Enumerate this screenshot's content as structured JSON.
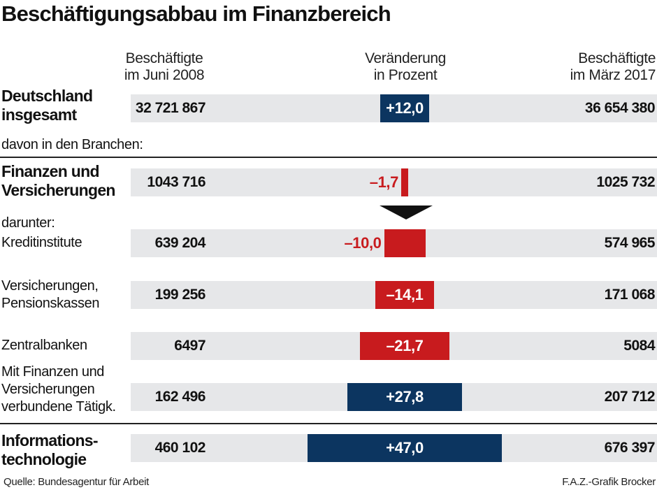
{
  "chart_data": {
    "type": "bar",
    "title": "Beschäftigungsabbau im Finanzbereich",
    "column_headers": {
      "left": [
        "Beschäftigte",
        "im Juni 2008"
      ],
      "center": [
        "Veränderung",
        "in Prozent"
      ],
      "right": [
        "Beschäftigte",
        "im März 2017"
      ]
    },
    "section_labels": {
      "davon": "davon in den Branchen:",
      "darunter": "darunter:"
    },
    "rows": [
      {
        "label": [
          "Deutschland",
          "insgesamt"
        ],
        "bold": true,
        "employed_2008": "32 721 867",
        "change": 12.0,
        "change_label": "+12,0",
        "employed_2017": "36 654 380"
      },
      {
        "label": [
          "Finanzen und",
          "Versicherungen"
        ],
        "bold": true,
        "employed_2008": "1043 716",
        "change": -1.7,
        "change_label": "–1,7",
        "employed_2017": "1025 732"
      },
      {
        "label": [
          "Kreditinstitute"
        ],
        "bold": false,
        "employed_2008": "639 204",
        "change": -10.0,
        "change_label": "–10,0",
        "employed_2017": "574 965"
      },
      {
        "label": [
          "Versicherungen,",
          "Pensionskassen"
        ],
        "bold": false,
        "employed_2008": "199 256",
        "change": -14.1,
        "change_label": "–14,1",
        "employed_2017": "171 068"
      },
      {
        "label": [
          "Zentralbanken"
        ],
        "bold": false,
        "employed_2008": "6497",
        "change": -21.7,
        "change_label": "–21,7",
        "employed_2017": "5084"
      },
      {
        "label": [
          "Mit Finanzen und",
          "Versicherungen",
          "verbundene Tätigk."
        ],
        "bold": false,
        "employed_2008": "162 496",
        "change": 27.8,
        "change_label": "+27,8",
        "employed_2017": "207 712"
      },
      {
        "label": [
          "Informations-",
          "technologie"
        ],
        "bold": true,
        "employed_2008": "460 102",
        "change": 47.0,
        "change_label": "+47,0",
        "employed_2017": "676 397"
      }
    ],
    "source": "Quelle: Bundesagentur für Arbeit",
    "credit": "F.A.Z.-Grafik Brocker",
    "colors": {
      "positive": "#0c3560",
      "negative": "#c81b1e",
      "row_background": "#e6e7e9"
    }
  }
}
